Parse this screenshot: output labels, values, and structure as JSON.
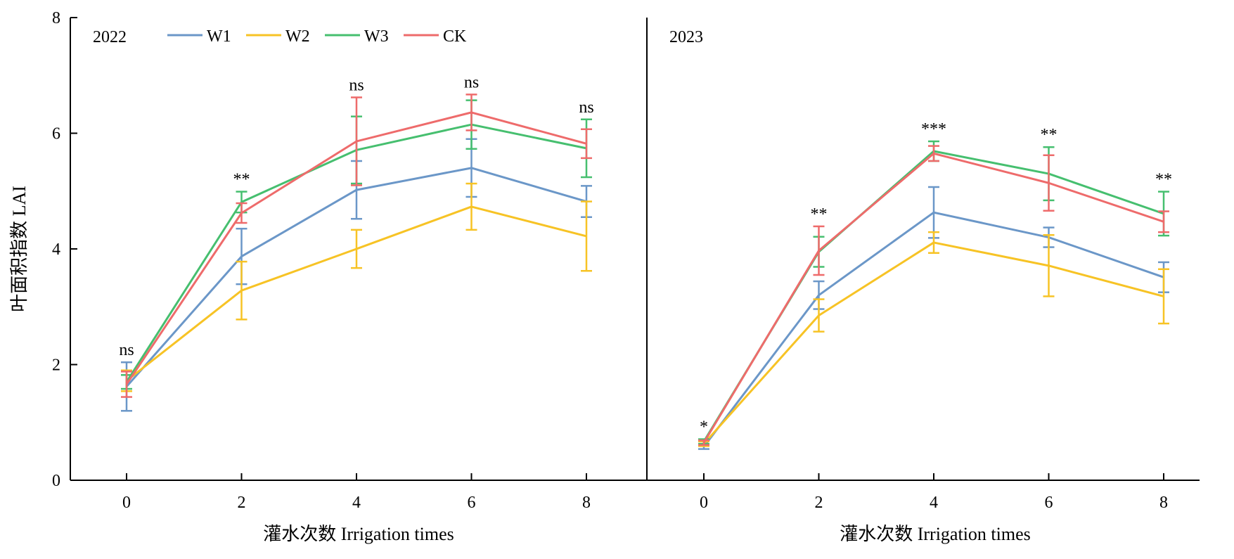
{
  "chart_data": {
    "type": "line",
    "ylabel": "叶面积指数 LAI",
    "ylim": [
      0,
      8
    ],
    "yticks": [
      0,
      2,
      4,
      6,
      8
    ],
    "grid": false,
    "legend_position": "top-left",
    "colors": {
      "W1": "#6b97c8",
      "W2": "#f7c325",
      "W3": "#46bf6f",
      "CK": "#ee6b6b"
    },
    "legend": [
      "W1",
      "W2",
      "W3",
      "CK"
    ],
    "panels": [
      {
        "label": "2022",
        "xlabel": "灌水次数 Irrigation times",
        "x": [
          0,
          2,
          4,
          6,
          8
        ],
        "significance": [
          "ns",
          "**",
          "ns",
          "ns",
          "ns"
        ],
        "series": [
          {
            "name": "W1",
            "values": [
              1.62,
              3.87,
              5.02,
              5.4,
              4.82
            ],
            "errors": [
              0.42,
              0.48,
              0.5,
              0.5,
              0.27
            ]
          },
          {
            "name": "W2",
            "values": [
              1.72,
              3.28,
              4.0,
              4.73,
              4.22
            ],
            "errors": [
              0.18,
              0.5,
              0.33,
              0.4,
              0.6
            ]
          },
          {
            "name": "W3",
            "values": [
              1.7,
              4.81,
              5.71,
              6.15,
              5.74
            ],
            "errors": [
              0.12,
              0.18,
              0.58,
              0.42,
              0.5
            ]
          },
          {
            "name": "CK",
            "values": [
              1.66,
              4.62,
              5.86,
              6.36,
              5.82
            ],
            "errors": [
              0.22,
              0.17,
              0.76,
              0.31,
              0.25
            ]
          }
        ]
      },
      {
        "label": "2023",
        "xlabel": "灌水次数 Irrigation times",
        "x": [
          0,
          2,
          4,
          6,
          8
        ],
        "significance": [
          "*",
          "**",
          "***",
          "**",
          "**"
        ],
        "series": [
          {
            "name": "W1",
            "values": [
              0.58,
              3.2,
              4.63,
              4.2,
              3.51
            ],
            "errors": [
              0.04,
              0.24,
              0.44,
              0.17,
              0.26
            ]
          },
          {
            "name": "W2",
            "values": [
              0.63,
              2.85,
              4.11,
              3.71,
              3.18
            ],
            "errors": [
              0.04,
              0.28,
              0.18,
              0.53,
              0.47
            ]
          },
          {
            "name": "W3",
            "values": [
              0.67,
              3.95,
              5.69,
              5.3,
              4.61
            ],
            "errors": [
              0.04,
              0.26,
              0.17,
              0.46,
              0.38
            ]
          },
          {
            "name": "CK",
            "values": [
              0.65,
              3.97,
              5.65,
              5.14,
              4.47
            ],
            "errors": [
              0.04,
              0.42,
              0.13,
              0.48,
              0.18
            ]
          }
        ]
      }
    ]
  }
}
